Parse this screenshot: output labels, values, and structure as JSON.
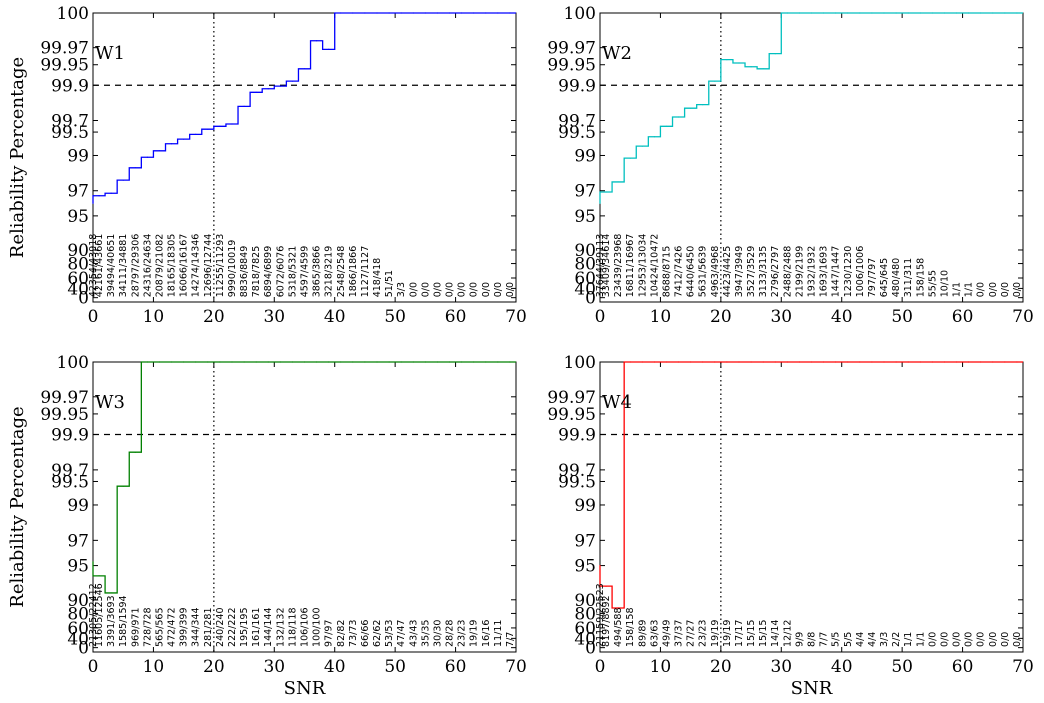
{
  "chart_data": [
    {
      "type": "line",
      "title": "W1",
      "color": "#0000ff",
      "xlabel": "",
      "ylabel": "Reliability Percentage",
      "xlim": [
        0,
        70
      ],
      "xticks": [
        0,
        10,
        20,
        30,
        40,
        50,
        60,
        70
      ],
      "yticks": [
        "0",
        "40",
        "60",
        "80",
        "90",
        "95",
        "97",
        "99",
        "99.5",
        "99.7",
        "99.9",
        "99.95",
        "99.97",
        "100"
      ],
      "reference_line": {
        "y": "99.9",
        "style": "dashed"
      },
      "vertical_line": {
        "x": 20,
        "style": "dotted"
      },
      "x": [
        -1,
        1,
        3,
        5,
        7,
        9,
        11,
        13,
        15,
        17,
        19,
        21,
        23,
        25,
        27,
        29,
        31,
        33,
        35,
        37,
        39,
        41,
        43,
        45,
        47,
        49,
        51,
        53,
        55,
        57,
        59,
        61,
        63,
        65,
        67,
        69
      ],
      "y": [
        96.0,
        96.6,
        96.8,
        97.6,
        98.3,
        98.9,
        99.1,
        99.25,
        99.35,
        99.45,
        99.55,
        99.6,
        99.64,
        99.78,
        99.86,
        99.88,
        99.895,
        99.91,
        99.94,
        99.976,
        99.968,
        100,
        100,
        100,
        100,
        100,
        100,
        100,
        100,
        100,
        100,
        100,
        100,
        100,
        100,
        100
      ],
      "labels": [
        "42354/43918",
        "42161/43661",
        "39494/40651",
        "34111/34881",
        "28797/29306",
        "24316/24634",
        "20879/21082",
        "18165/18305",
        "16066/16167",
        "14274/14346",
        "12696/12744",
        "11255/11293",
        "9990/10019",
        "8836/8849",
        "7818/7825",
        "6894/6899",
        "6072/6076",
        "5318/5321",
        "4597/4599",
        "3865/3866",
        "3218/3219",
        "2548/2548",
        "1866/1866",
        "1127/1127",
        "418/418",
        "51/51",
        "3/3",
        "0/0",
        "0/0",
        "0/0",
        "0/0",
        "0/0",
        "0/0",
        "0/0",
        "0/0",
        "0/0"
      ]
    },
    {
      "type": "line",
      "title": "W2",
      "color": "#00bfbf",
      "xlabel": "",
      "ylabel": "",
      "xlim": [
        0,
        70
      ],
      "xticks": [
        0,
        10,
        20,
        30,
        40,
        50,
        60,
        70
      ],
      "yticks": [
        "0",
        "40",
        "60",
        "80",
        "90",
        "95",
        "97",
        "99",
        "99.5",
        "99.7",
        "99.9",
        "99.95",
        "99.97",
        "100"
      ],
      "reference_line": {
        "y": "99.9",
        "style": "dashed"
      },
      "vertical_line": {
        "x": 20,
        "style": "dotted"
      },
      "x": [
        -1,
        1,
        3,
        5,
        7,
        9,
        11,
        13,
        15,
        17,
        19,
        21,
        23,
        25,
        27,
        29,
        31,
        33,
        35,
        37,
        39,
        41,
        43,
        45,
        47,
        49,
        51,
        53,
        55,
        57,
        59,
        61,
        63,
        65,
        67,
        69
      ],
      "y": [
        96.0,
        96.9,
        97.5,
        98.85,
        99.2,
        99.4,
        99.6,
        99.72,
        99.77,
        99.79,
        99.91,
        99.956,
        99.952,
        99.945,
        99.94,
        99.963,
        100,
        100,
        100,
        100,
        100,
        100,
        100,
        100,
        100,
        100,
        100,
        100,
        100,
        100,
        100,
        100,
        100,
        100,
        100,
        100
      ],
      "labels": [
        "37644/39113",
        "33409/34614",
        "23439/23968",
        "16811/16967",
        "12953/13034",
        "10424/10472",
        "8688/8715",
        "7412/7426",
        "6440/6450",
        "5631/5639",
        "4963/4968",
        "4423/4425",
        "3947/3949",
        "3527/3529",
        "3133/3135",
        "2796/2797",
        "2488/2488",
        "2199/2199",
        "1932/1932",
        "1693/1693",
        "1447/1447",
        "1230/1230",
        "1006/1006",
        "797/797",
        "645/645",
        "480/480",
        "311/311",
        "158/158",
        "55/55",
        "10/10",
        "1/1",
        "1/1",
        "0/0",
        "0/0",
        "0/0",
        "0/0"
      ]
    },
    {
      "type": "line",
      "title": "W3",
      "color": "#008000",
      "xlabel": "SNR",
      "ylabel": "Reliability Percentage",
      "xlim": [
        0,
        70
      ],
      "xticks": [
        0,
        10,
        20,
        30,
        40,
        50,
        60,
        70
      ],
      "yticks": [
        "0",
        "40",
        "60",
        "80",
        "90",
        "95",
        "97",
        "99",
        "99.5",
        "99.7",
        "99.9",
        "99.95",
        "99.97",
        "100"
      ],
      "reference_line": {
        "y": "99.9",
        "style": "dashed"
      },
      "vertical_line": {
        "x": 20,
        "style": "dotted"
      },
      "x": [
        -1,
        1,
        3,
        5,
        7,
        9,
        11,
        13,
        15,
        17,
        19,
        21,
        23,
        25,
        27,
        29,
        31,
        33,
        35,
        37,
        39,
        41,
        43,
        45,
        47,
        49,
        51,
        53,
        55,
        57,
        59,
        61,
        63,
        65,
        67,
        69
      ],
      "y": [
        95.3,
        93.5,
        91.0,
        99.4,
        99.8,
        100,
        100,
        100,
        100,
        100,
        100,
        100,
        100,
        100,
        100,
        100,
        100,
        100,
        100,
        100,
        100,
        100,
        100,
        100,
        100,
        100,
        100,
        100,
        100,
        100,
        100,
        100,
        100,
        100,
        100,
        100
      ],
      "labels": [
        "21305/22412",
        "11605/12546",
        "3391/3693",
        "1585/1594",
        "969/971",
        "728/728",
        "565/565",
        "472/472",
        "399/399",
        "344/344",
        "281/281",
        "240/240",
        "222/222",
        "195/195",
        "161/161",
        "144/144",
        "132/132",
        "118/118",
        "106/106",
        "100/100",
        "97/97",
        "82/82",
        "73/73",
        "66/66",
        "62/62",
        "53/53",
        "47/47",
        "43/43",
        "35/35",
        "30/30",
        "28/28",
        "23/23",
        "19/19",
        "16/16",
        "11/11",
        "7/7"
      ]
    },
    {
      "type": "line",
      "title": "W4",
      "color": "#ff0000",
      "xlabel": "SNR",
      "ylabel": "",
      "xlim": [
        0,
        70
      ],
      "xticks": [
        0,
        10,
        20,
        30,
        40,
        50,
        60,
        70
      ],
      "yticks": [
        "0",
        "40",
        "60",
        "80",
        "90",
        "95",
        "97",
        "99",
        "99.5",
        "99.7",
        "99.9",
        "99.95",
        "99.97",
        "100"
      ],
      "reference_line": {
        "y": "99.9",
        "style": "dashed"
      },
      "vertical_line": {
        "x": 20,
        "style": "dotted"
      },
      "x": [
        -1,
        1,
        3,
        5,
        7,
        9,
        11,
        13,
        15,
        17,
        19,
        21,
        23,
        25,
        27,
        29,
        31,
        33,
        35,
        37,
        39,
        41,
        43,
        45,
        47,
        49,
        51,
        53,
        55,
        57,
        59,
        61,
        63,
        65,
        67,
        69
      ],
      "y": [
        95.0,
        92.0,
        84.0,
        100,
        100,
        100,
        100,
        100,
        100,
        100,
        100,
        100,
        100,
        100,
        100,
        100,
        100,
        100,
        100,
        100,
        100,
        100,
        100,
        100,
        100,
        100,
        100,
        100,
        100,
        100,
        100,
        100,
        100,
        100,
        100,
        100
      ],
      "labels": [
        "21159/22523",
        "8197/8892",
        "494/588",
        "158/158",
        "89/89",
        "63/63",
        "49/49",
        "37/37",
        "27/27",
        "23/23",
        "19/19",
        "19/19",
        "17/17",
        "15/15",
        "15/15",
        "14/14",
        "12/12",
        "9/9",
        "8/8",
        "7/7",
        "5/5",
        "5/5",
        "4/4",
        "4/4",
        "3/3",
        "2/2",
        "1/1",
        "1/1",
        "0/0",
        "0/0",
        "0/0",
        "0/0",
        "0/0",
        "0/0",
        "0/0",
        "0/0"
      ]
    }
  ]
}
